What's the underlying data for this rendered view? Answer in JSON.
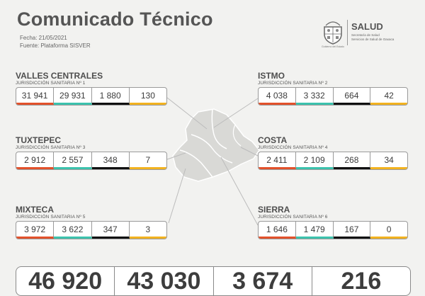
{
  "header": {
    "title": "Comunicado Técnico",
    "date": "Fecha: 21/05/2021",
    "source": "Fuente: Plataforma SISVER"
  },
  "logo": {
    "name": "SALUD",
    "line1": "Secretaría de Salud",
    "line2": "Servicios de Salud de Oaxaca",
    "seal_caption": "Gobierno del Estado"
  },
  "colors": {
    "confirmados": "#e2512b",
    "recuperados": "#3cc2ad",
    "defunciones": "#111111",
    "activos": "#f2b21f",
    "map": "#d9d9d6"
  },
  "regions": [
    {
      "name": "VALLES CENTRALES",
      "sub": "JURISDICCIÓN SANITARIA Nº 1",
      "values": [
        "31 941",
        "29 931",
        "1 880",
        "130"
      ]
    },
    {
      "name": "TUXTEPEC",
      "sub": "JURISDICCIÓN SANITARIA Nº 3",
      "values": [
        "2 912",
        "2 557",
        "348",
        "7"
      ]
    },
    {
      "name": "MIXTECA",
      "sub": "JURISDICCIÓN SANITARIA Nº 5",
      "values": [
        "3 972",
        "3 622",
        "347",
        "3"
      ]
    },
    {
      "name": "ISTMO",
      "sub": "JURISDICCIÓN SANITARIA Nº 2",
      "values": [
        "4 038",
        "3 332",
        "664",
        "42"
      ]
    },
    {
      "name": "COSTA",
      "sub": "JURISDICCIÓN SANITARIA Nº 4",
      "values": [
        "2 411",
        "2 109",
        "268",
        "34"
      ]
    },
    {
      "name": "SIERRA",
      "sub": "JURISDICCIÓN SANITARIA Nº 6",
      "values": [
        "1 646",
        "1 479",
        "167",
        "0"
      ]
    }
  ],
  "totals": [
    "46 920",
    "43 030",
    "3 674",
    "216"
  ]
}
